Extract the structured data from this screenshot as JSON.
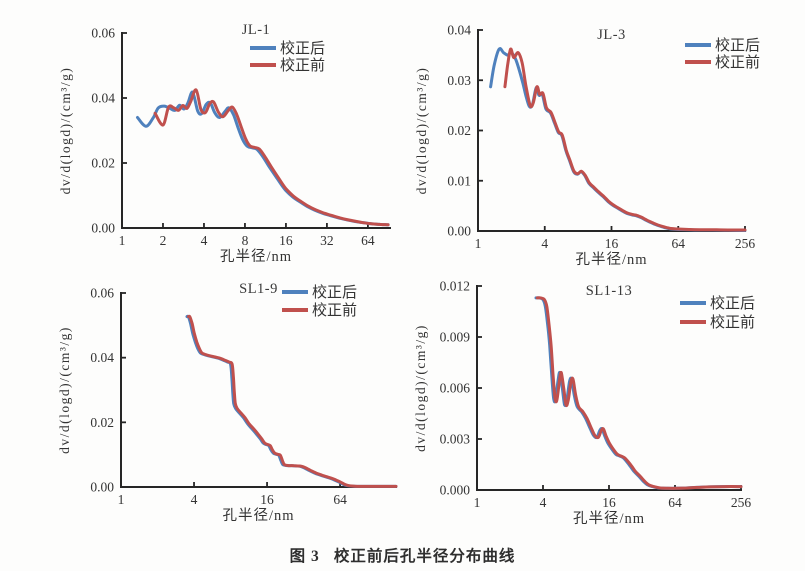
{
  "figure": {
    "caption": {
      "label": "图 3",
      "text": "校正前后孔半径分布曲线"
    }
  },
  "colors": {
    "corrected_after": "#4f81bd",
    "corrected_before": "#c0504d",
    "axis": "#262626",
    "text": "#333333"
  },
  "legend_labels": {
    "after": "校正后",
    "before": "校正前"
  },
  "chart_data": [
    {
      "type": "line",
      "title": "JL-1",
      "xlabel": "孔半径/nm",
      "ylabel": "dv/d(logd)/(cm³/g)",
      "x_scale": "log",
      "xlim": [
        1,
        93
      ],
      "ylim": [
        0,
        0.06
      ],
      "x_ticks": [
        {
          "v": 1,
          "label": "1"
        },
        {
          "v": 2,
          "label": "2"
        },
        {
          "v": 4,
          "label": "4"
        },
        {
          "v": 8,
          "label": "8"
        },
        {
          "v": 16,
          "label": "16"
        },
        {
          "v": 32,
          "label": "32"
        },
        {
          "v": 64,
          "label": "64"
        }
      ],
      "y_ticks": [
        {
          "v": 0,
          "label": "0.00"
        },
        {
          "v": 0.02,
          "label": "0.02"
        },
        {
          "v": 0.04,
          "label": "0.04"
        },
        {
          "v": 0.06,
          "label": "0.06"
        }
      ],
      "legend_position": "top-right",
      "series": [
        {
          "name": "校正后",
          "color": "corrected_after",
          "x": [
            1.3,
            1.5,
            1.7,
            1.85,
            2.05,
            2.25,
            2.45,
            2.65,
            2.85,
            3.05,
            3.3,
            3.6,
            3.85,
            4.15,
            4.45,
            4.8,
            5.2,
            5.7,
            6.1,
            6.6,
            7.1,
            7.7,
            8.3,
            9.0,
            9.8,
            10.8,
            12,
            13.5,
            15,
            16,
            18,
            20,
            23,
            26,
            30,
            34,
            40,
            46,
            53,
            60,
            68,
            78,
            90
          ],
          "y": [
            0.034,
            0.0313,
            0.034,
            0.037,
            0.0375,
            0.0368,
            0.0362,
            0.0378,
            0.0366,
            0.0385,
            0.0418,
            0.036,
            0.0352,
            0.038,
            0.0385,
            0.0355,
            0.034,
            0.0358,
            0.037,
            0.0348,
            0.031,
            0.0272,
            0.0252,
            0.0247,
            0.0242,
            0.022,
            0.019,
            0.0158,
            0.013,
            0.0115,
            0.0095,
            0.0082,
            0.0066,
            0.0055,
            0.0045,
            0.0038,
            0.003,
            0.0024,
            0.0019,
            0.0016,
            0.0013,
            0.0011,
            0.001
          ]
        },
        {
          "name": "校正前",
          "color": "corrected_before",
          "x": [
            1.75,
            2.0,
            2.2,
            2.4,
            2.6,
            2.8,
            3.0,
            3.2,
            3.5,
            3.8,
            4.1,
            4.4,
            4.7,
            5.1,
            5.5,
            6.0,
            6.45,
            6.95,
            7.5,
            8.1,
            8.7,
            9.4,
            10.2,
            11.2,
            12.4,
            13.9,
            15.4,
            16.4,
            18.4,
            20.4,
            23.4,
            26.4,
            30.4,
            34.4,
            40,
            46,
            53,
            60,
            68,
            78,
            90
          ],
          "y": [
            0.0353,
            0.0317,
            0.0372,
            0.037,
            0.0362,
            0.0377,
            0.0368,
            0.039,
            0.0425,
            0.0365,
            0.0355,
            0.0382,
            0.0388,
            0.0357,
            0.0342,
            0.036,
            0.0372,
            0.035,
            0.0312,
            0.0274,
            0.0253,
            0.0248,
            0.0243,
            0.022,
            0.019,
            0.0158,
            0.013,
            0.0116,
            0.0096,
            0.0083,
            0.0067,
            0.0056,
            0.0046,
            0.0039,
            0.0031,
            0.0025,
            0.002,
            0.0016,
            0.0013,
            0.0011,
            0.001
          ]
        }
      ]
    },
    {
      "type": "line",
      "title": "JL-3",
      "xlabel": "孔半径/nm",
      "ylabel": "dv/d(logd)/(cm³/g)",
      "x_scale": "log",
      "xlim": [
        1,
        256
      ],
      "ylim": [
        0,
        0.04
      ],
      "x_ticks": [
        {
          "v": 1,
          "label": "1"
        },
        {
          "v": 4,
          "label": "4"
        },
        {
          "v": 16,
          "label": "16"
        },
        {
          "v": 64,
          "label": "64"
        },
        {
          "v": 256,
          "label": "256"
        }
      ],
      "y_ticks": [
        {
          "v": 0,
          "label": "0.00"
        },
        {
          "v": 0.01,
          "label": "0.01"
        },
        {
          "v": 0.02,
          "label": "0.02"
        },
        {
          "v": 0.03,
          "label": "0.03"
        },
        {
          "v": 0.04,
          "label": "0.04"
        }
      ],
      "legend_position": "top-right",
      "series": [
        {
          "name": "校正后",
          "color": "corrected_after",
          "x": [
            1.3,
            1.4,
            1.55,
            1.7,
            1.85,
            2.0,
            2.2,
            2.5,
            2.7,
            2.9,
            3.1,
            3.35,
            3.55,
            3.8,
            4.1,
            4.5,
            4.9,
            5.3,
            5.7,
            6.2,
            6.7,
            7.3,
            7.9,
            8.5,
            9.2,
            10,
            11,
            12,
            13.5,
            15,
            16.5,
            18,
            20,
            22,
            24.5,
            27,
            30,
            33,
            37,
            42,
            48,
            55,
            64,
            80,
            100,
            130,
            180,
            256
          ],
          "y": [
            0.0287,
            0.033,
            0.0362,
            0.0355,
            0.035,
            0.0355,
            0.034,
            0.03,
            0.027,
            0.0248,
            0.0252,
            0.0285,
            0.027,
            0.0272,
            0.0243,
            0.0235,
            0.0215,
            0.0196,
            0.019,
            0.016,
            0.014,
            0.0118,
            0.0113,
            0.0118,
            0.011,
            0.0095,
            0.0086,
            0.0078,
            0.0068,
            0.0058,
            0.0051,
            0.0046,
            0.004,
            0.0035,
            0.0032,
            0.003,
            0.0026,
            0.0021,
            0.0016,
            0.0011,
            0.0007,
            0.0004,
            0.0003,
            0.00025,
            0.0002,
            0.0002,
            0.00015,
            0.0001
          ]
        },
        {
          "name": "校正前",
          "color": "corrected_before",
          "x": [
            1.75,
            1.85,
            1.97,
            2.1,
            2.3,
            2.5,
            2.7,
            2.95,
            3.15,
            3.4,
            3.6,
            3.85,
            4.15,
            4.55,
            4.95,
            5.35,
            5.75,
            6.25,
            6.75,
            7.35,
            7.95,
            8.55,
            9.25,
            10.1,
            11.1,
            12.1,
            13.6,
            15.1,
            16.6,
            18.1,
            20.1,
            22.1,
            24.6,
            27.1,
            30.1,
            33.1,
            37.1,
            42,
            48,
            55,
            64,
            80,
            100,
            130,
            180,
            256
          ],
          "y": [
            0.0287,
            0.033,
            0.0362,
            0.0345,
            0.0355,
            0.0335,
            0.029,
            0.025,
            0.0255,
            0.0287,
            0.0272,
            0.0274,
            0.0245,
            0.0236,
            0.0216,
            0.0197,
            0.0191,
            0.0161,
            0.0141,
            0.0119,
            0.0114,
            0.0119,
            0.0111,
            0.0096,
            0.0087,
            0.0079,
            0.0069,
            0.0059,
            0.0052,
            0.0047,
            0.0041,
            0.0036,
            0.0033,
            0.0031,
            0.0027,
            0.0022,
            0.0017,
            0.0012,
            0.0008,
            0.0005,
            0.0004,
            0.0003,
            0.00025,
            0.00025,
            0.0002,
            0.0002
          ]
        }
      ]
    },
    {
      "type": "line",
      "title": "SL1-9",
      "xlabel": "孔半径/nm",
      "ylabel": "dv/d(logd)/(cm³/g)",
      "x_scale": "log",
      "xlim": [
        1,
        185
      ],
      "ylim": [
        0,
        0.06
      ],
      "x_ticks": [
        {
          "v": 1,
          "label": "1"
        },
        {
          "v": 4,
          "label": "4"
        },
        {
          "v": 16,
          "label": "16"
        },
        {
          "v": 64,
          "label": "64"
        }
      ],
      "y_ticks": [
        {
          "v": 0,
          "label": "0.00"
        },
        {
          "v": 0.02,
          "label": "0.02"
        },
        {
          "v": 0.04,
          "label": "0.04"
        },
        {
          "v": 0.06,
          "label": "0.06"
        }
      ],
      "legend_position": "top-right",
      "series": [
        {
          "name": "校正后",
          "color": "corrected_after",
          "x": [
            3.5,
            3.6,
            3.75,
            3.9,
            4.1,
            4.3,
            4.5,
            4.8,
            5.2,
            5.8,
            6.4,
            7.0,
            7.6,
            8.0,
            8.2,
            8.35,
            8.5,
            8.8,
            9.4,
            10.2,
            11,
            12,
            13,
            14,
            14.8,
            15.5,
            16.5,
            17.2,
            18,
            19,
            20,
            20.8,
            21.5,
            22.5,
            24,
            26,
            28,
            30,
            32,
            34,
            36,
            38,
            40,
            43,
            46,
            50,
            54,
            58,
            62,
            65,
            68,
            72,
            78,
            90,
            120,
            160,
            185
          ],
          "y": [
            0.0527,
            0.0526,
            0.0505,
            0.0475,
            0.0448,
            0.0428,
            0.0415,
            0.041,
            0.0406,
            0.0402,
            0.0398,
            0.0392,
            0.0386,
            0.038,
            0.034,
            0.029,
            0.0258,
            0.0243,
            0.023,
            0.0215,
            0.0197,
            0.018,
            0.0165,
            0.015,
            0.0137,
            0.0132,
            0.0128,
            0.0115,
            0.0105,
            0.0101,
            0.0098,
            0.0082,
            0.007,
            0.0067,
            0.0066,
            0.0066,
            0.0065,
            0.0064,
            0.006,
            0.0055,
            0.005,
            0.0046,
            0.0042,
            0.0038,
            0.0034,
            0.003,
            0.0026,
            0.0021,
            0.0016,
            0.0012,
            0.0008,
            0.0005,
            0.0003,
            0.0002,
            0.0002,
            0.0002,
            0.0002
          ]
        },
        {
          "name": "校正前",
          "color": "corrected_before",
          "x": [
            3.6,
            3.7,
            3.86,
            4.02,
            4.22,
            4.43,
            4.64,
            4.94,
            5.36,
            5.97,
            6.59,
            7.21,
            7.83,
            8.24,
            8.45,
            8.6,
            8.76,
            9.06,
            9.68,
            10.5,
            11.3,
            12.4,
            13.4,
            14.4,
            15.2,
            16,
            17,
            17.7,
            18.5,
            19.6,
            20.6,
            21.4,
            22.1,
            23.2,
            24.7,
            26.8,
            28.8,
            30.9,
            33,
            35,
            37.1,
            39.1,
            41.2,
            44.3,
            47.4,
            51.5,
            55.6,
            59.7,
            63.9,
            67,
            70,
            74.2,
            80.3,
            92.7,
            123.6,
            164.8,
            185
          ],
          "y": [
            0.0527,
            0.0526,
            0.0505,
            0.0475,
            0.0448,
            0.0428,
            0.0415,
            0.041,
            0.0406,
            0.0402,
            0.0398,
            0.0392,
            0.0386,
            0.038,
            0.034,
            0.029,
            0.0258,
            0.0243,
            0.023,
            0.0215,
            0.0197,
            0.018,
            0.0165,
            0.015,
            0.0137,
            0.0132,
            0.0128,
            0.0115,
            0.0105,
            0.0101,
            0.0098,
            0.0082,
            0.007,
            0.0067,
            0.0066,
            0.0066,
            0.0065,
            0.0064,
            0.006,
            0.0055,
            0.005,
            0.0046,
            0.0042,
            0.0038,
            0.0034,
            0.003,
            0.0026,
            0.0021,
            0.0016,
            0.0012,
            0.0008,
            0.0005,
            0.0003,
            0.0002,
            0.0002,
            0.0002,
            0.0002
          ]
        }
      ]
    },
    {
      "type": "line",
      "title": "SL1-13",
      "xlabel": "孔半径/nm",
      "ylabel": "dv/d(logd)/(cm³/g)",
      "x_scale": "log",
      "xlim": [
        1,
        256
      ],
      "ylim": [
        0,
        0.012
      ],
      "x_ticks": [
        {
          "v": 1,
          "label": "1"
        },
        {
          "v": 4,
          "label": "4"
        },
        {
          "v": 16,
          "label": "16"
        },
        {
          "v": 64,
          "label": "64"
        },
        {
          "v": 256,
          "label": "256"
        }
      ],
      "y_ticks": [
        {
          "v": 0,
          "label": "0.000"
        },
        {
          "v": 0.003,
          "label": "0.003"
        },
        {
          "v": 0.006,
          "label": "0.006"
        },
        {
          "v": 0.009,
          "label": "0.009"
        },
        {
          "v": 0.012,
          "label": "0.012"
        }
      ],
      "legend_position": "top-right",
      "series": [
        {
          "name": "校正后",
          "color": "corrected_after",
          "x": [
            3.45,
            3.7,
            4.0,
            4.2,
            4.4,
            4.6,
            4.8,
            5.0,
            5.2,
            5.5,
            5.7,
            6.0,
            6.3,
            6.6,
            7.0,
            7.3,
            7.7,
            8.2,
            9.0,
            9.8,
            10.8,
            11.6,
            12.4,
            13.2,
            13.8,
            14.6,
            15.5,
            17,
            18.5,
            20,
            21.5,
            23,
            25,
            27,
            30,
            33,
            36,
            40,
            46,
            55,
            64,
            80,
            100,
            130,
            180,
            256
          ],
          "y": [
            0.0113,
            0.0113,
            0.0112,
            0.0108,
            0.0098,
            0.0085,
            0.0068,
            0.0054,
            0.0053,
            0.0065,
            0.0069,
            0.006,
            0.005,
            0.0053,
            0.0064,
            0.0065,
            0.0056,
            0.0049,
            0.0046,
            0.0042,
            0.0036,
            0.0032,
            0.0031,
            0.0035,
            0.0036,
            0.0032,
            0.0028,
            0.0024,
            0.0021,
            0.002,
            0.0019,
            0.0017,
            0.0014,
            0.0011,
            0.0008,
            0.0005,
            0.0003,
            0.0002,
            0.00012,
            0.0001,
            0.0001,
            0.00012,
            0.00015,
            0.00018,
            0.0002,
            0.0002
          ]
        },
        {
          "name": "校正前",
          "color": "corrected_before",
          "x": [
            3.55,
            3.81,
            4.12,
            4.33,
            4.53,
            4.74,
            4.94,
            5.15,
            5.36,
            5.67,
            5.87,
            6.18,
            6.49,
            6.8,
            7.21,
            7.52,
            7.93,
            8.45,
            9.27,
            10.1,
            11.1,
            11.9,
            12.8,
            13.6,
            14.2,
            15,
            16,
            17.5,
            19.1,
            20.6,
            22.1,
            23.7,
            25.8,
            27.8,
            30.9,
            34,
            37.1,
            41.2,
            47.4,
            56.7,
            65.9,
            82.4,
            103,
            133.9,
            185.4,
            256
          ],
          "y": [
            0.0113,
            0.0113,
            0.0112,
            0.0108,
            0.0098,
            0.0085,
            0.0068,
            0.0054,
            0.0053,
            0.0065,
            0.0069,
            0.006,
            0.005,
            0.0053,
            0.0064,
            0.0065,
            0.0056,
            0.0049,
            0.0046,
            0.0042,
            0.0036,
            0.0032,
            0.0031,
            0.0035,
            0.0036,
            0.0032,
            0.0028,
            0.0024,
            0.0021,
            0.002,
            0.0019,
            0.0017,
            0.0014,
            0.0011,
            0.0008,
            0.0005,
            0.0003,
            0.0002,
            0.00012,
            0.0001,
            0.0001,
            0.00012,
            0.00015,
            0.00018,
            0.0002,
            0.0002
          ]
        }
      ]
    }
  ]
}
